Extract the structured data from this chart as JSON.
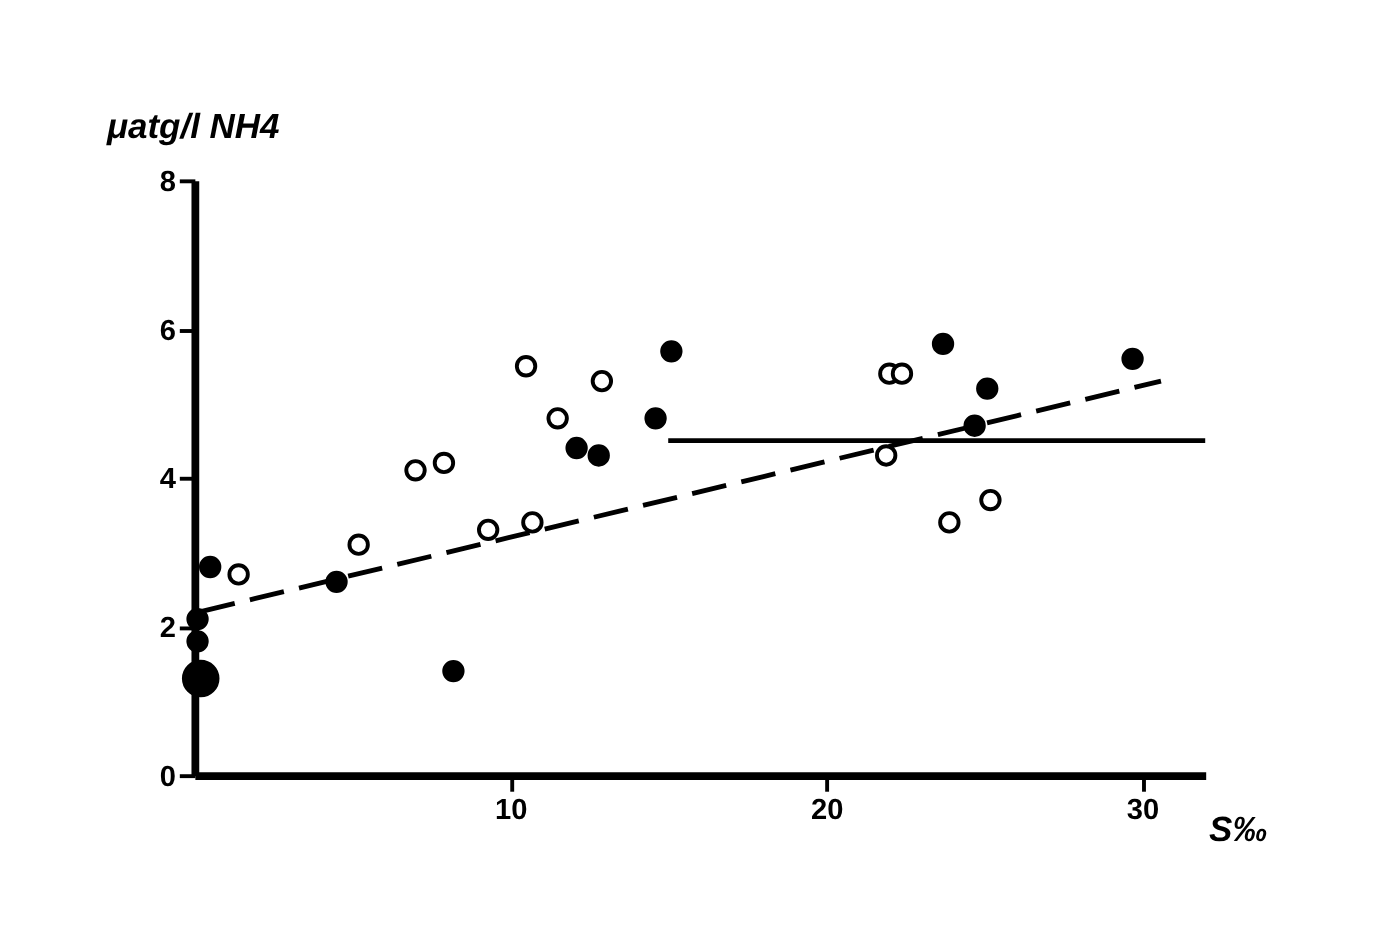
{
  "chart_data": {
    "type": "scatter",
    "xlabel": "S‰",
    "ylabel": "μatg/l NH4",
    "xlim": [
      0,
      32
    ],
    "ylim": [
      0,
      8
    ],
    "xticks": [
      10,
      20,
      30
    ],
    "yticks": [
      0,
      2,
      4,
      6,
      8
    ],
    "grid": false,
    "series": [
      {
        "color": "#ffffff",
        "marker": "circle",
        "x": [
          1.4,
          5.2,
          7.0,
          7.9,
          9.3,
          10.5,
          10.7,
          11.5,
          12.9,
          21.9,
          22.0,
          22.4,
          23.9,
          25.2
        ],
        "values": [
          2.7,
          3.1,
          4.1,
          4.2,
          3.3,
          5.5,
          3.4,
          4.8,
          5.3,
          4.3,
          5.4,
          5.4,
          3.4,
          3.7
        ]
      },
      {
        "color": "#000000",
        "marker": "circle",
        "x": [
          0.2,
          0.1,
          0.1,
          0.5,
          4.5,
          8.2,
          12.1,
          12.8,
          14.6,
          15.1,
          23.7,
          24.7,
          25.1,
          29.7
        ],
        "values": [
          1.3,
          2.1,
          1.8,
          2.8,
          2.6,
          1.4,
          4.4,
          4.3,
          4.8,
          5.7,
          5.8,
          4.7,
          5.2,
          5.6
        ],
        "sizes": [
          1,
          0.3,
          0.3,
          0.3,
          0.3,
          0.3,
          0.3,
          0.3,
          0.3,
          0.3,
          0.3,
          0.3,
          0.3,
          0.3
        ]
      },
      {
        "type": "line",
        "line_style": "dashed",
        "color": "#000000",
        "x": [
          0.2,
          30.6
        ],
        "values": [
          2.2,
          5.3
        ]
      },
      {
        "type": "line",
        "line_style": "solid",
        "color": "#000000",
        "x": [
          15,
          32
        ],
        "values": [
          4.5,
          4.5
        ]
      }
    ]
  }
}
